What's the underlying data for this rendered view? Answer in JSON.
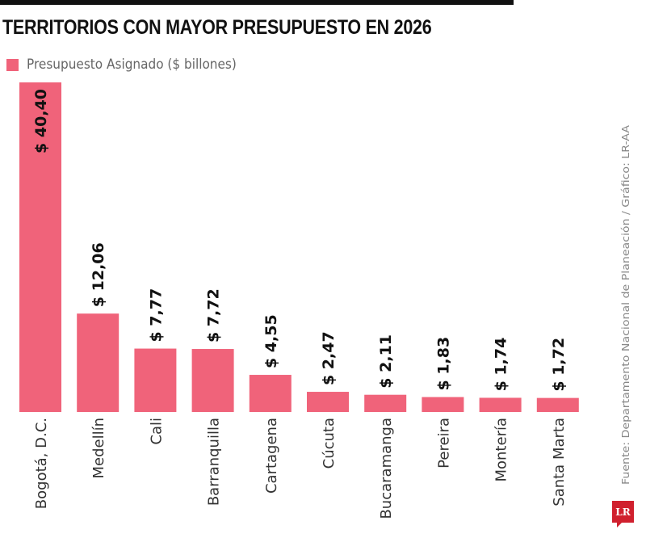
{
  "chart_data": {
    "type": "bar",
    "title": "TERRITORIOS CON MAYOR PRESUPUESTO EN 2026",
    "legend": "Presupuesto Asignado ($ billones)",
    "categories": [
      "Bogotá, D.C.",
      "Medellín",
      "Cali",
      "Barranquilla",
      "Cartagena",
      "Cúcuta",
      "Bucaramanga",
      "Pereira",
      "Montería",
      "Santa Marta"
    ],
    "values": [
      40.4,
      12.06,
      7.77,
      7.72,
      4.55,
      2.47,
      2.11,
      1.83,
      1.74,
      1.72
    ],
    "value_labels": [
      "$ 40,40",
      "$ 12,06",
      "$ 7,77",
      "$ 7,72",
      "$ 4,55",
      "$ 2,47",
      "$ 2,11",
      "$ 1,83",
      "$ 1,74",
      "$ 1,72"
    ],
    "ylim": [
      0,
      40.4
    ],
    "grid": false,
    "legend_position": "top-left",
    "bar_color": "#f0637a"
  },
  "source": "Fuente: Departamento Nacional de Planeación / Gráfico: LR-AA",
  "logo": "LR"
}
